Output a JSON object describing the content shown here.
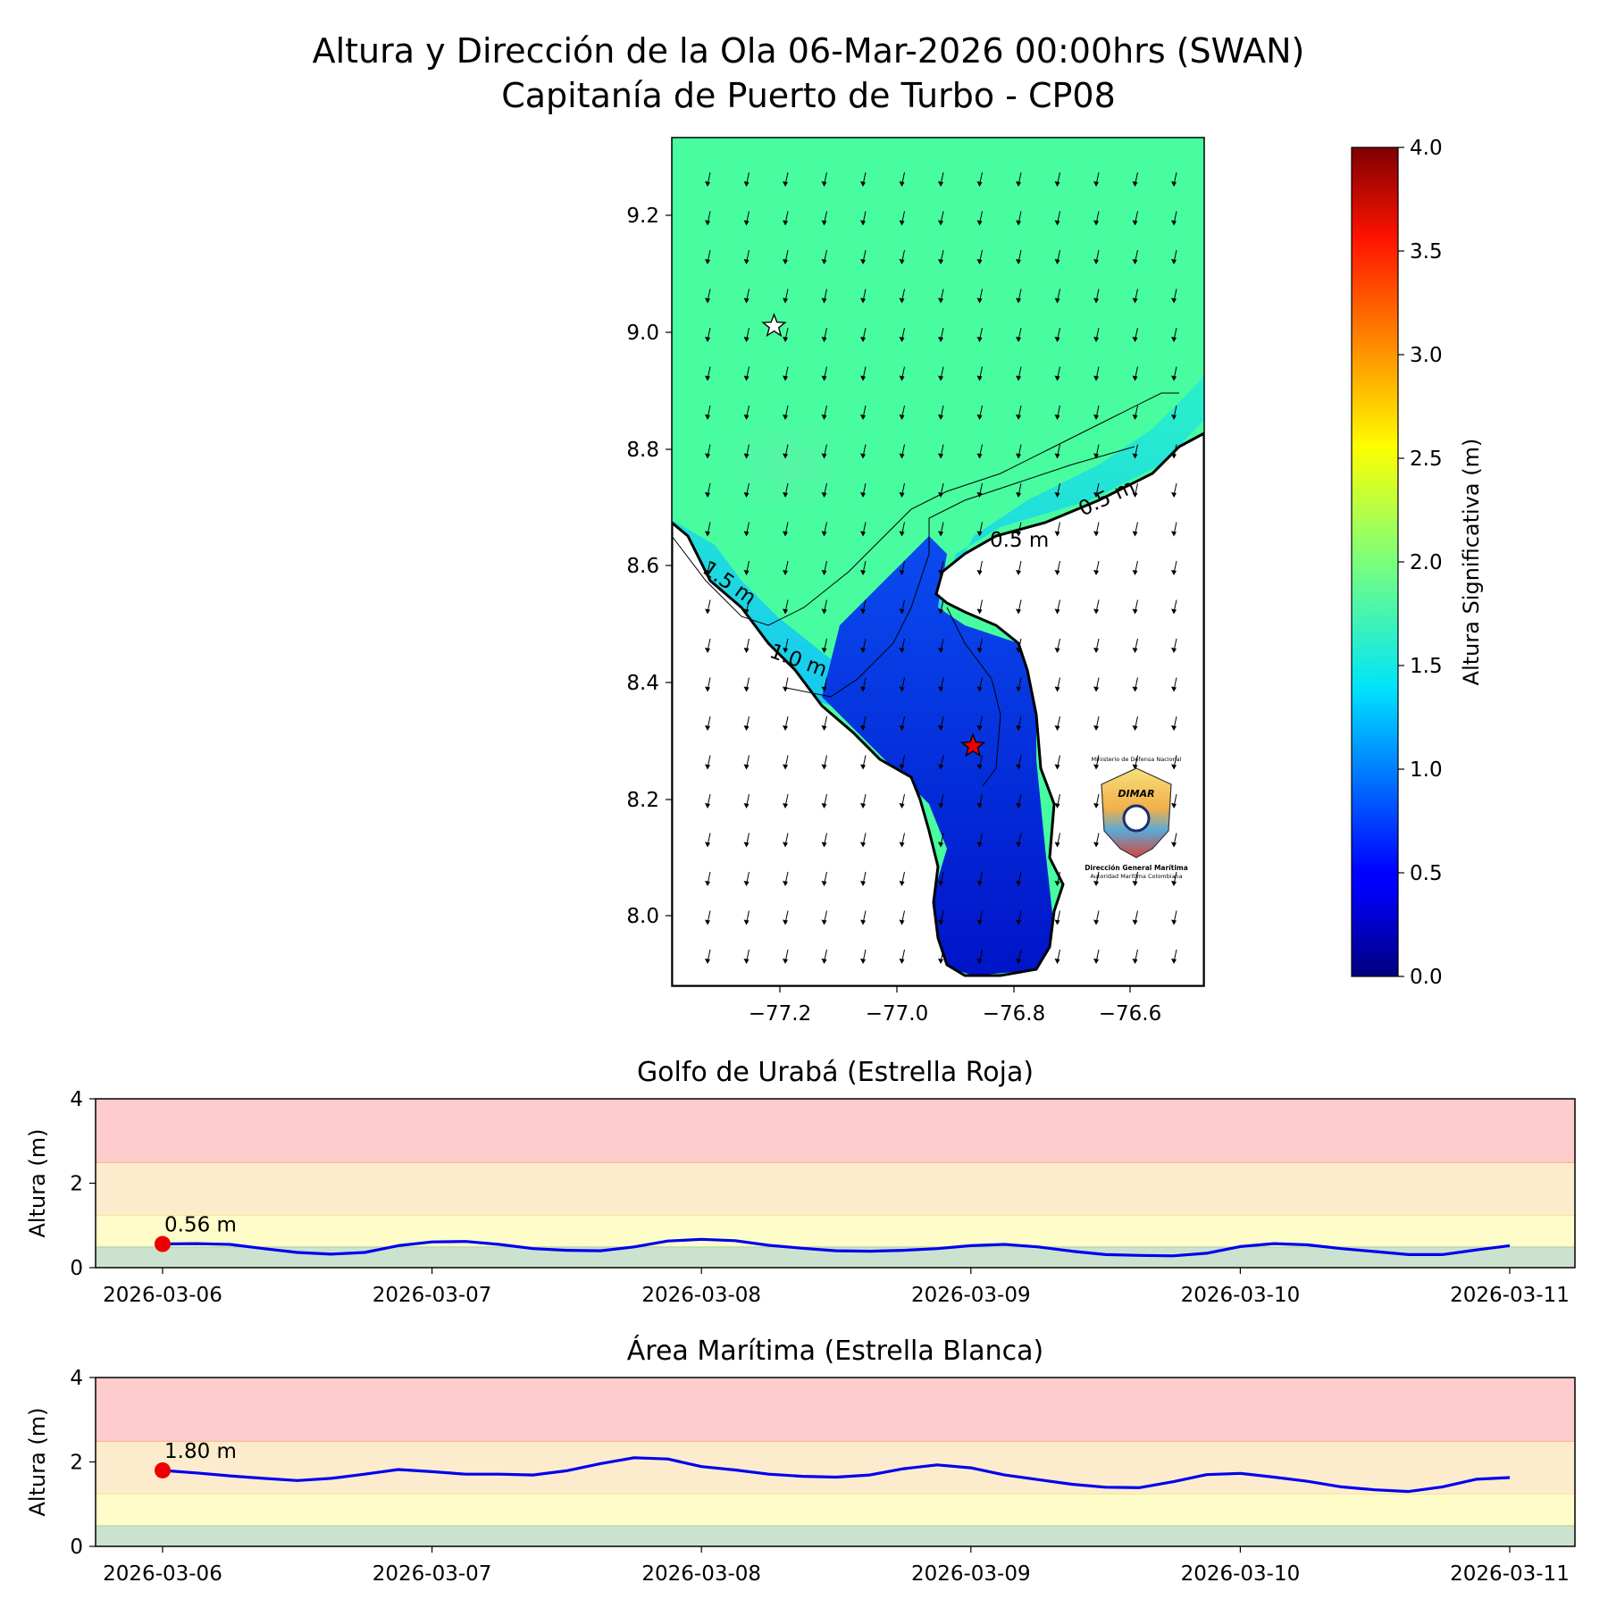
{
  "header": {
    "title_line1": "Altura y Dirección de la Ola 06-Mar-2026 00:00hrs (SWAN)",
    "title_line2": "Capitanía de Puerto de Turbo - CP08"
  },
  "map": {
    "x_ticks": [
      "−77.2",
      "−77.0",
      "−76.8",
      "−76.6"
    ],
    "y_ticks": [
      "9.2",
      "9.0",
      "8.8",
      "8.6",
      "8.4",
      "8.2",
      "8.0"
    ],
    "contour_labels": [
      "1.5 m",
      "1.0 m",
      "0.5 m",
      "0.5 m"
    ],
    "colorbar": {
      "label": "Altura Significativa (m)",
      "ticks": [
        "4.0",
        "3.5",
        "3.0",
        "2.5",
        "2.0",
        "1.5",
        "1.0",
        "0.5",
        "0.0"
      ],
      "min": 0,
      "max": 4
    },
    "markers": {
      "white_star": {
        "lon": -77.21,
        "lat": 9.01
      },
      "red_star": {
        "lon": -76.87,
        "lat": 8.29
      }
    },
    "logo": {
      "ministry": "Ministerio de Defensa Nacional",
      "brand": "DIMAR",
      "org": "Dirección General Marítima",
      "sub": "Autoridad Marítima Colombiana"
    }
  },
  "colors": {
    "series_line": "#0000ee",
    "marker": "#ee0000",
    "band_green": "#cbe3ce",
    "band_yellow": "#fefcc9",
    "band_orange": "#fdebcd",
    "band_red": "#fecccc"
  },
  "chart_data": [
    {
      "type": "line",
      "title": "Golfo de Urabá (Estrella Roja)",
      "ylabel": "Altura (m)",
      "xlabel": "",
      "ylim": [
        0,
        4
      ],
      "y_ticks": [
        "0",
        "2",
        "4"
      ],
      "x_ticks": [
        "2026-03-06",
        "2026-03-07",
        "2026-03-08",
        "2026-03-09",
        "2026-03-10",
        "2026-03-11"
      ],
      "x": [
        "2026-03-06 00:00",
        "2026-03-06 03:00",
        "2026-03-06 06:00",
        "2026-03-06 09:00",
        "2026-03-06 12:00",
        "2026-03-06 15:00",
        "2026-03-06 18:00",
        "2026-03-06 21:00",
        "2026-03-07 00:00",
        "2026-03-07 03:00",
        "2026-03-07 06:00",
        "2026-03-07 09:00",
        "2026-03-07 12:00",
        "2026-03-07 15:00",
        "2026-03-07 18:00",
        "2026-03-07 21:00",
        "2026-03-08 00:00",
        "2026-03-08 03:00",
        "2026-03-08 06:00",
        "2026-03-08 09:00",
        "2026-03-08 12:00",
        "2026-03-08 15:00",
        "2026-03-08 18:00",
        "2026-03-08 21:00",
        "2026-03-09 00:00",
        "2026-03-09 03:00",
        "2026-03-09 06:00",
        "2026-03-09 09:00",
        "2026-03-09 12:00",
        "2026-03-09 15:00",
        "2026-03-09 18:00",
        "2026-03-09 21:00",
        "2026-03-10 00:00",
        "2026-03-10 03:00",
        "2026-03-10 06:00",
        "2026-03-10 09:00",
        "2026-03-10 12:00",
        "2026-03-10 15:00",
        "2026-03-10 18:00",
        "2026-03-10 21:00",
        "2026-03-11 00:00"
      ],
      "series": [
        {
          "values": [
            0.56,
            0.57,
            0.55,
            0.45,
            0.36,
            0.32,
            0.36,
            0.52,
            0.61,
            0.62,
            0.55,
            0.45,
            0.41,
            0.4,
            0.49,
            0.63,
            0.67,
            0.64,
            0.53,
            0.46,
            0.4,
            0.39,
            0.41,
            0.45,
            0.52,
            0.55,
            0.49,
            0.39,
            0.31,
            0.29,
            0.28,
            0.34,
            0.5,
            0.57,
            0.54,
            0.45,
            0.38,
            0.31,
            0.31,
            0.42,
            0.52
          ]
        }
      ],
      "current_label": "0.56 m",
      "current_value": 0.56,
      "thresholds": [
        0.5,
        1.25,
        2.5,
        4
      ]
    },
    {
      "type": "line",
      "title": "Área Marítima (Estrella Blanca)",
      "ylabel": "Altura (m)",
      "xlabel": "",
      "ylim": [
        0,
        4
      ],
      "y_ticks": [
        "0",
        "2",
        "4"
      ],
      "x_ticks": [
        "2026-03-06",
        "2026-03-07",
        "2026-03-08",
        "2026-03-09",
        "2026-03-10",
        "2026-03-11"
      ],
      "x": [
        "2026-03-06 00:00",
        "2026-03-06 03:00",
        "2026-03-06 06:00",
        "2026-03-06 09:00",
        "2026-03-06 12:00",
        "2026-03-06 15:00",
        "2026-03-06 18:00",
        "2026-03-06 21:00",
        "2026-03-07 00:00",
        "2026-03-07 03:00",
        "2026-03-07 06:00",
        "2026-03-07 09:00",
        "2026-03-07 12:00",
        "2026-03-07 15:00",
        "2026-03-07 18:00",
        "2026-03-07 21:00",
        "2026-03-08 00:00",
        "2026-03-08 03:00",
        "2026-03-08 06:00",
        "2026-03-08 09:00",
        "2026-03-08 12:00",
        "2026-03-08 15:00",
        "2026-03-08 18:00",
        "2026-03-08 21:00",
        "2026-03-09 00:00",
        "2026-03-09 03:00",
        "2026-03-09 06:00",
        "2026-03-09 09:00",
        "2026-03-09 12:00",
        "2026-03-09 15:00",
        "2026-03-09 18:00",
        "2026-03-09 21:00",
        "2026-03-10 00:00",
        "2026-03-10 03:00",
        "2026-03-10 06:00",
        "2026-03-10 09:00",
        "2026-03-10 12:00",
        "2026-03-10 15:00",
        "2026-03-10 18:00",
        "2026-03-10 21:00",
        "2026-03-11 00:00"
      ],
      "series": [
        {
          "values": [
            1.8,
            1.74,
            1.67,
            1.61,
            1.56,
            1.61,
            1.71,
            1.82,
            1.77,
            1.71,
            1.71,
            1.69,
            1.79,
            1.96,
            2.1,
            2.07,
            1.89,
            1.81,
            1.71,
            1.66,
            1.64,
            1.69,
            1.84,
            1.93,
            1.86,
            1.69,
            1.58,
            1.47,
            1.4,
            1.39,
            1.53,
            1.7,
            1.73,
            1.64,
            1.54,
            1.41,
            1.34,
            1.3,
            1.41,
            1.59,
            1.63
          ]
        }
      ],
      "current_label": "1.80 m",
      "current_value": 1.8,
      "thresholds": [
        0.5,
        1.25,
        2.5,
        4
      ]
    }
  ]
}
